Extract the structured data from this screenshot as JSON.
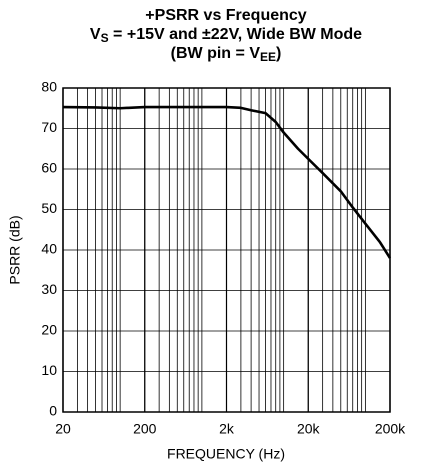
{
  "chart_data": {
    "type": "line",
    "title": [
      [
        "+PSRR vs Frequency"
      ],
      [
        "V",
        "S",
        " = +15V and ±22V, Wide BW Mode"
      ],
      [
        "(BW pin = V",
        "EE",
        ")"
      ]
    ],
    "xlabel": "FREQUENCY (Hz)",
    "ylabel": "PSRR (dB)",
    "xscale": "log",
    "grid": true,
    "xlim": [
      20,
      200000
    ],
    "ylim": [
      0,
      80
    ],
    "xticks": [
      20,
      200,
      {
        "value": 2000,
        "label": "2k"
      },
      {
        "value": 20000,
        "label": "20k"
      },
      {
        "value": 200000,
        "label": "200k"
      }
    ],
    "yticks": [
      0,
      10,
      20,
      30,
      40,
      50,
      60,
      70,
      80
    ],
    "series": [
      {
        "name": "+PSRR",
        "color": "#000000",
        "x": [
          20,
          50,
          100,
          200,
          500,
          1000,
          2000,
          3000,
          4000,
          6000,
          8000,
          10000,
          15000,
          20000,
          30000,
          50000,
          70000,
          100000,
          150000,
          200000
        ],
        "values": [
          75.3,
          75.2,
          75,
          75.3,
          75.3,
          75.3,
          75.3,
          75.1,
          74.5,
          73.8,
          71.6,
          69,
          65,
          62.5,
          59,
          54.5,
          50.5,
          46.5,
          42,
          38
        ]
      }
    ]
  }
}
